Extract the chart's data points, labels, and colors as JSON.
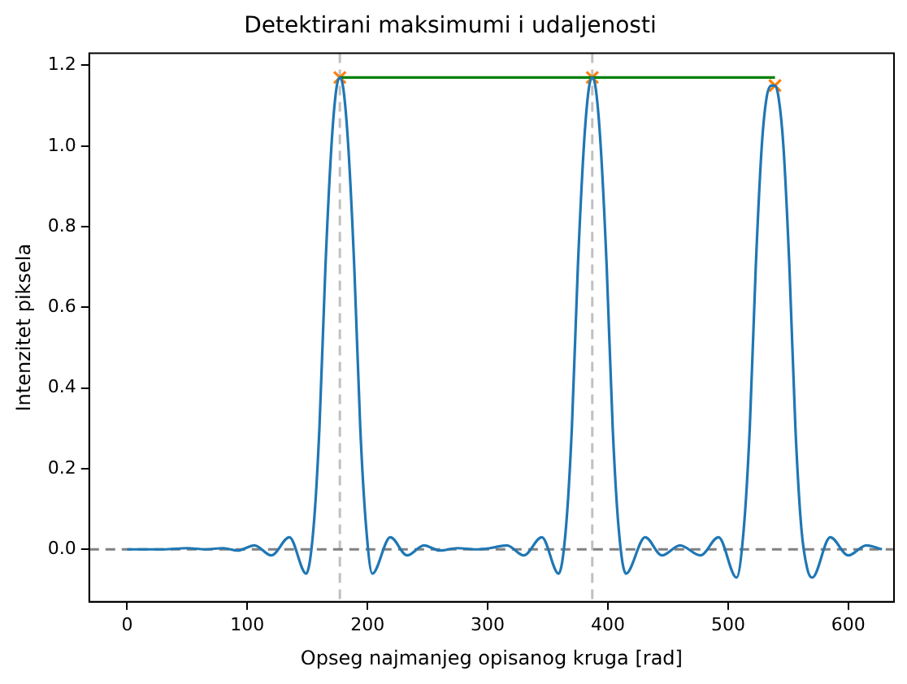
{
  "chart_data": {
    "type": "line",
    "title": "Detektirani maksimumi i udaljenosti",
    "xlabel": "Opseg najmanjeg opisanog kruga [rad]",
    "ylabel": "Intenzitet piksela",
    "xlim": [
      -31.5,
      638
    ],
    "ylim": [
      -0.13,
      1.23
    ],
    "xticks": [
      0,
      100,
      200,
      300,
      400,
      500,
      600
    ],
    "yticks": [
      {
        "value": 0,
        "label": "0.0"
      },
      {
        "value": 0.2,
        "label": "0.2"
      },
      {
        "value": 0.4,
        "label": "0.4"
      },
      {
        "value": 0.6,
        "label": "0.6"
      },
      {
        "value": 0.8,
        "label": "0.8"
      },
      {
        "value": 1.0,
        "label": "1.0"
      },
      {
        "value": 1.2,
        "label": "1.2"
      }
    ],
    "grid": false,
    "legend": false,
    "series": [
      {
        "color": "#1f77b4",
        "x": [
          0,
          30,
          50,
          65,
          80,
          92,
          106,
          120,
          135,
          149,
          155,
          160,
          165,
          170,
          174,
          177,
          180,
          184,
          189,
          194,
          199,
          204,
          219,
          233,
          247,
          260,
          275,
          290,
          302,
          316,
          330,
          345,
          359,
          365,
          370,
          375,
          380,
          384,
          387,
          390,
          394,
          399,
          404,
          409,
          415,
          431,
          445,
          460,
          477,
          492,
          507,
          513,
          518,
          523,
          528,
          532,
          536,
          539,
          542,
          546,
          551,
          556,
          561,
          566,
          570,
          585,
          600,
          615,
          628
        ],
        "values": [
          0,
          0,
          0.003,
          0,
          0.003,
          -0.003,
          0.01,
          -0.015,
          0.03,
          -0.06,
          0.05,
          0.3,
          0.7,
          1.0,
          1.14,
          1.17,
          1.14,
          1.0,
          0.7,
          0.3,
          0.05,
          -0.06,
          0.03,
          -0.015,
          0.01,
          -0.003,
          0.003,
          0,
          0.003,
          0.01,
          -0.015,
          0.03,
          -0.06,
          0.05,
          0.3,
          0.7,
          1.0,
          1.14,
          1.17,
          1.14,
          1.0,
          0.7,
          0.3,
          0.05,
          -0.06,
          0.03,
          -0.015,
          0.01,
          -0.015,
          0.03,
          -0.07,
          0.05,
          0.3,
          0.7,
          1.0,
          1.12,
          1.15,
          1.15,
          1.12,
          1.0,
          0.7,
          0.3,
          0.05,
          -0.05,
          -0.07,
          0.03,
          -0.015,
          0.01,
          0
        ]
      },
      {
        "type": "line",
        "color": "#008000",
        "x": [
          177,
          539
        ],
        "values": [
          1.17,
          1.17
        ]
      },
      {
        "type": "scatter",
        "color": "#ff7f0e",
        "marker": "cross",
        "x": [
          177,
          387,
          539
        ],
        "values": [
          1.17,
          1.17,
          1.15
        ]
      }
    ],
    "ref_lines": [
      {
        "axis": "x",
        "value": 177,
        "color": "#c0c0c0",
        "line_style": "dashed"
      },
      {
        "axis": "x",
        "value": 387,
        "color": "#c0c0c0",
        "line_style": "dashed"
      },
      {
        "axis": "y",
        "value": 0,
        "color": "#808080",
        "line_style": "dashed"
      }
    ]
  }
}
